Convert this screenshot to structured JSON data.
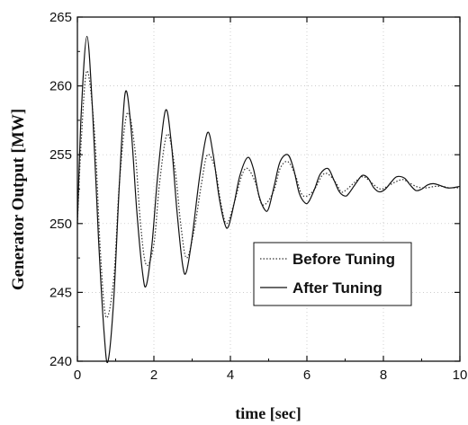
{
  "chart_data": {
    "type": "line",
    "title": "",
    "xlabel": "time [sec]",
    "ylabel": "Generator Output [MW]",
    "xlim": [
      0,
      10
    ],
    "ylim": [
      240,
      265
    ],
    "xticks": [
      0,
      2,
      4,
      6,
      8,
      10
    ],
    "yticks": [
      240,
      245,
      250,
      255,
      260,
      265
    ],
    "grid": true,
    "legend_position": "center-right",
    "series": [
      {
        "name": "Before Tuning",
        "style": "dotted",
        "color": "#333333",
        "x": [
          0,
          0.1,
          0.25,
          0.45,
          0.6,
          0.75,
          0.95,
          1.1,
          1.3,
          1.5,
          1.65,
          1.8,
          2.0,
          2.15,
          2.35,
          2.55,
          2.7,
          2.85,
          3.05,
          3.25,
          3.4,
          3.6,
          3.75,
          3.9,
          4.1,
          4.3,
          4.45,
          4.65,
          4.8,
          4.95,
          5.15,
          5.3,
          5.5,
          5.7,
          5.85,
          6.0,
          6.2,
          6.4,
          6.55,
          6.75,
          6.9,
          7.05,
          7.25,
          7.45,
          7.6,
          7.8,
          7.95,
          8.1,
          8.3,
          8.5,
          8.65,
          8.85,
          9.0,
          9.15,
          9.35,
          9.55,
          9.7,
          9.9,
          10.0
        ],
        "values": [
          250.0,
          256.0,
          261.1,
          256.5,
          248.0,
          243.2,
          246.0,
          253.0,
          258.0,
          255.5,
          250.0,
          247.0,
          248.5,
          253.0,
          256.5,
          254.0,
          250.0,
          247.5,
          249.5,
          253.0,
          255.0,
          254.0,
          251.5,
          250.0,
          251.5,
          253.5,
          254.0,
          253.0,
          251.5,
          251.5,
          252.5,
          254.0,
          254.5,
          253.5,
          252.2,
          252.0,
          252.5,
          253.5,
          253.6,
          253.0,
          252.3,
          252.5,
          253.0,
          253.4,
          253.2,
          252.7,
          252.5,
          252.7,
          253.0,
          253.2,
          253.0,
          252.7,
          252.6,
          252.6,
          252.7,
          252.7,
          252.6,
          252.6,
          252.6
        ]
      },
      {
        "name": "After Tuning",
        "style": "solid",
        "color": "#111111",
        "x": [
          0,
          0.1,
          0.25,
          0.4,
          0.55,
          0.7,
          0.8,
          0.95,
          1.1,
          1.25,
          1.4,
          1.55,
          1.7,
          1.8,
          1.95,
          2.1,
          2.3,
          2.45,
          2.6,
          2.75,
          2.85,
          3.0,
          3.2,
          3.4,
          3.55,
          3.7,
          3.85,
          3.95,
          4.1,
          4.25,
          4.45,
          4.6,
          4.75,
          4.9,
          5.0,
          5.15,
          5.3,
          5.5,
          5.65,
          5.8,
          5.95,
          6.05,
          6.2,
          6.35,
          6.55,
          6.7,
          6.85,
          7.0,
          7.1,
          7.3,
          7.45,
          7.6,
          7.75,
          7.9,
          8.05,
          8.2,
          8.35,
          8.55,
          8.7,
          8.85,
          9.0,
          9.15,
          9.3,
          9.45,
          9.65,
          9.8,
          10.0
        ],
        "values": [
          250.0,
          258.0,
          263.6,
          258.0,
          249.0,
          242.0,
          240.0,
          244.5,
          253.0,
          259.5,
          257.0,
          251.0,
          246.5,
          245.5,
          248.5,
          253.5,
          258.2,
          256.0,
          251.0,
          247.0,
          246.5,
          249.0,
          253.5,
          256.6,
          255.0,
          252.0,
          250.0,
          249.8,
          251.5,
          253.5,
          254.8,
          254.0,
          252.0,
          251.0,
          251.1,
          252.8,
          254.5,
          255.0,
          254.0,
          252.2,
          251.5,
          251.6,
          252.5,
          253.6,
          254.0,
          253.2,
          252.3,
          252.0,
          252.2,
          253.0,
          253.5,
          253.3,
          252.6,
          252.3,
          252.5,
          253.0,
          253.4,
          253.3,
          252.8,
          252.4,
          252.5,
          252.8,
          252.9,
          252.8,
          252.6,
          252.6,
          252.7
        ]
      }
    ]
  }
}
